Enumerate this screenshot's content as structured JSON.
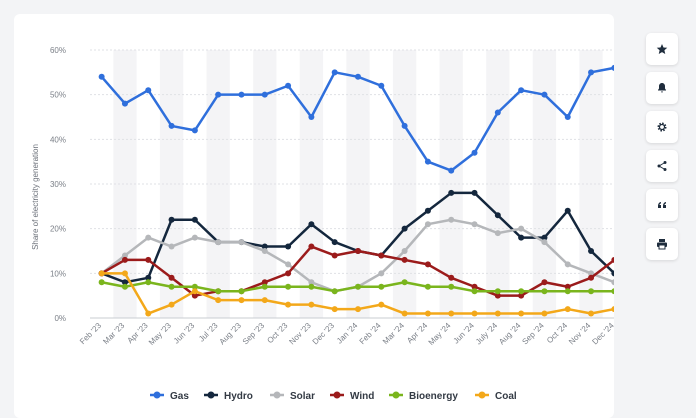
{
  "chart_data": {
    "type": "line",
    "ylabel": "Share of electricity generation",
    "ylim": [
      0,
      60
    ],
    "yticks": [
      "0%",
      "10%",
      "20%",
      "30%",
      "40%",
      "50%",
      "60%"
    ],
    "categories": [
      "Feb '23",
      "Mar '23",
      "Apr '23",
      "May '23",
      "Jun '23",
      "Jul '23",
      "Aug '23",
      "Sep '23",
      "Oct '23",
      "Nov '23",
      "Dec '23",
      "Jan '24",
      "Feb '24",
      "Mar '24",
      "Apr '24",
      "May '24",
      "Jun '24",
      "July '24",
      "Aug '24",
      "Sep '24",
      "Oct '24",
      "Nov '24",
      "Dec '24"
    ],
    "series": [
      {
        "name": "Gas",
        "color": "#2f6fdc",
        "values": [
          54,
          48,
          51,
          43,
          42,
          50,
          50,
          50,
          52,
          45,
          55,
          54,
          52,
          43,
          35,
          33,
          37,
          46,
          51,
          50,
          45,
          55,
          56
        ]
      },
      {
        "name": "Hydro",
        "color": "#14273d",
        "values": [
          10,
          8,
          9,
          22,
          22,
          17,
          17,
          16,
          16,
          21,
          17,
          15,
          14,
          20,
          24,
          28,
          28,
          23,
          18,
          18,
          24,
          15,
          10
        ]
      },
      {
        "name": "Solar",
        "color": "#b5b7ba",
        "values": [
          10,
          14,
          18,
          16,
          18,
          17,
          17,
          15,
          12,
          8,
          6,
          7,
          10,
          15,
          21,
          22,
          21,
          19,
          20,
          17,
          12,
          10,
          8
        ]
      },
      {
        "name": "Wind",
        "color": "#9b1b1b",
        "values": [
          10,
          13,
          13,
          9,
          5,
          6,
          6,
          8,
          10,
          16,
          14,
          15,
          14,
          13,
          12,
          9,
          7,
          5,
          5,
          8,
          7,
          9,
          13
        ]
      },
      {
        "name": "Bioenergy",
        "color": "#7ab51d",
        "values": [
          8,
          7,
          8,
          7,
          7,
          6,
          6,
          7,
          7,
          7,
          6,
          7,
          7,
          8,
          7,
          7,
          6,
          6,
          6,
          6,
          6,
          6,
          6
        ]
      },
      {
        "name": "Coal",
        "color": "#f3a81a",
        "values": [
          10,
          10,
          1,
          3,
          6,
          4,
          4,
          4,
          3,
          3,
          2,
          2,
          3,
          1,
          1,
          1,
          1,
          1,
          1,
          1,
          2,
          1,
          2
        ]
      }
    ],
    "grid": true,
    "legend_position": "bottom"
  },
  "toolbar": {
    "icons": [
      "star-icon",
      "bell-icon",
      "gear-icon",
      "share-icon",
      "quote-icon",
      "print-icon"
    ]
  }
}
